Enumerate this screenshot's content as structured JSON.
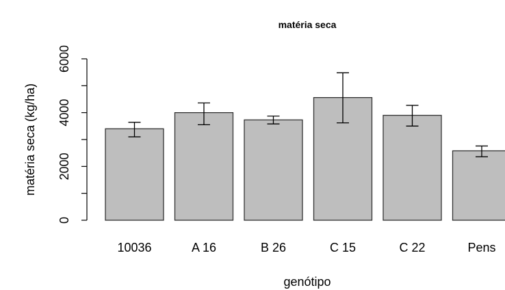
{
  "chart_data": {
    "type": "bar",
    "title": "matéria seca",
    "xlabel": "genótipo",
    "ylabel": "matéria seca (kg/ha)",
    "categories": [
      "10036",
      "A 16",
      "B 26",
      "C 15",
      "C 22",
      "Pens"
    ],
    "values": [
      3400,
      4000,
      3730,
      4560,
      3900,
      2580
    ],
    "error_bars": {
      "lower": [
        3100,
        3550,
        3580,
        3620,
        3500,
        2360
      ],
      "upper": [
        3640,
        4360,
        3870,
        5480,
        4270,
        2760
      ]
    },
    "ylim": [
      0,
      6000
    ],
    "yticks": [
      0,
      2000,
      4000,
      6000
    ],
    "grid": false,
    "bar_color": "#bebebe"
  }
}
